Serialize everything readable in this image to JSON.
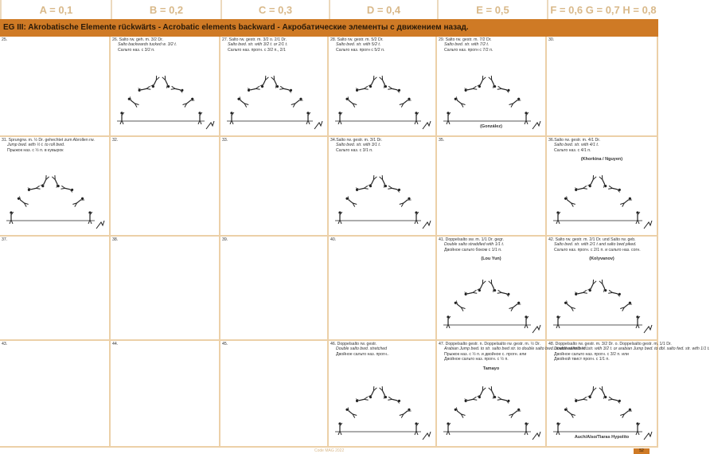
{
  "columns": [
    "A = 0,1",
    "B = 0,2",
    "C = 0,3",
    "D = 0,4",
    "E = 0,5",
    "F = 0,6 G = 0,7 H = 0,8"
  ],
  "section_title": "EG III: Akrobatische Elemente rückwärts - Acrobatic elements backward - Акробатические элементы с движением назад.",
  "rows": [
    [
      {
        "lines": [
          "25."
        ]
      },
      {
        "lines": [
          "26. Salto rw. geh. m. 3/2 Dr.",
          "Salto backwards tucked w. 3/2 t.",
          "Сальто наз. с 3/2 п."
        ],
        "figure": true
      },
      {
        "lines": [
          "27. Salto rw. gestr. m. 3/2 o. 2/1 Dr.",
          "Salto bwd. str. with 3/2 t. or 2/1 t.",
          "Сальто наз. прогн. с 3/2 п., 2/1"
        ],
        "figure": true
      },
      {
        "lines": [
          "28. Salto rw. gestr. m. 5/2 Dr.",
          "Salto bwd. str. with 5/2 t.",
          "Сальто наз. прогн с 5/2 п."
        ],
        "figure": true
      },
      {
        "lines": [
          "29. Salto rw. gestr. m. 7/2 Dr.",
          "Salto bwd. str. with 7/2 t.",
          "Сальто наз. прогн с 7/2 п."
        ],
        "name_bottom": "(González)",
        "figure": true
      },
      {
        "lines": [
          "30."
        ]
      }
    ],
    [
      {
        "lines": [
          "31. Sprungrw. m. ½ Dr. gehechtet zum Abrollen rw.",
          "Jump bwd. with ½ t. to roll bwd.",
          "Прыжок наз. с ½ п. в кувырок"
        ],
        "figure": true
      },
      {
        "lines": [
          "32."
        ]
      },
      {
        "lines": [
          "33."
        ]
      },
      {
        "lines": [
          "34.Salto rw. gestr. m. 3/1 Dr.",
          "Salto bwd. str. with 3/1 t.",
          "Сальто наз. с 3/1 п."
        ],
        "figure": true
      },
      {
        "lines": [
          "35."
        ]
      },
      {
        "lines": [
          "36.Salto rw. gestr. m. 4/1 Dr.",
          "Salto bwd. str. with 4/1 t.",
          "Сальто наз. с 4/1 п."
        ],
        "name": "(Khorkina / Nguyen)",
        "figure": true
      }
    ],
    [
      {
        "lines": [
          "37."
        ]
      },
      {
        "lines": [
          "38."
        ]
      },
      {
        "lines": [
          "39."
        ]
      },
      {
        "lines": [
          "40."
        ]
      },
      {
        "lines": [
          "41. Doppelsalto sw. m. 1/1 Dr. gegr.",
          "Double salto straddled with 1/1 t.",
          "Двойное сальто боком с 1/1 п."
        ],
        "name": "(Lou Yun)",
        "figure": true
      },
      {
        "lines": [
          "42. Salto rw. gestr. m. 2/1 Dr. und Salto rw. geb.",
          "Salto bwd. str. with 2/1 t and salto bwd piked.",
          "Сальто наз. прогн. с 2/1 п. и сальто наз. согн."
        ],
        "name": "(Kolyvanov)",
        "figure": true
      }
    ],
    [
      {
        "lines": [
          "43."
        ]
      },
      {
        "lines": [
          "44."
        ]
      },
      {
        "lines": [
          "45."
        ]
      },
      {
        "lines": [
          "46. Doppelsalto rw. gestr.",
          "Double salto bwd. stretched",
          "Двойное сальто наз. прогн.."
        ],
        "figure": true
      },
      {
        "lines": [
          "47. Doppelsalto gestr. n. Doppelsalto rw. gestr. m. ½ Dr.",
          "Arabian Jump bwd. to str. salto bwd str. to double salto bwd. stretched with ½ t.",
          "Прыжок наз. с ½ п. и двойное с. прогн. или",
          "Двойное сальто наз. прогн. с ½ п."
        ],
        "name": "Tamayo",
        "figure": true
      },
      {
        "lines": [
          "48. Doppelsalto rw. gestr. m. 3/2 Dr. o. Doppelsalto gestr. m. 1/1 Dr.",
          "Double salto bwd. str. with 3/2 t. or arabian Jump bwd. to dbl. salto fwd. str. with 1/1 t.",
          "Двойное сальто наз. прогн. с 3/2 п. или",
          "Двойной твист прогн. с 1/1 п."
        ],
        "name_bottom": "Auch/Also/Tiaras Hypolito",
        "figure": true
      }
    ]
  ],
  "footer": "Code MAG 2022",
  "page_number": "52",
  "colors": {
    "accent": "#cf7a25",
    "header_text": "#d9b98a",
    "grid": "#ecd0a8"
  }
}
